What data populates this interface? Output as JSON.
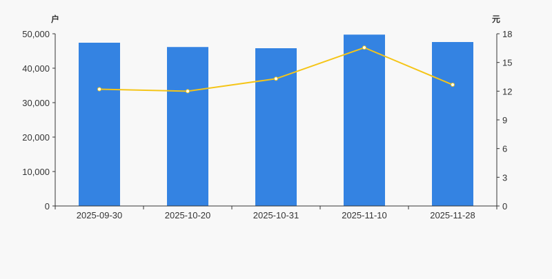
{
  "chart_data": {
    "type": "bar+line",
    "categories": [
      "2025-09-30",
      "2025-10-20",
      "2025-10-31",
      "2025-11-10",
      "2025-11-28"
    ],
    "series": [
      {
        "type": "bar",
        "axis": "left",
        "values": [
          47400,
          46150,
          45800,
          49750,
          47600
        ],
        "color": "#3483e2"
      },
      {
        "type": "line",
        "axis": "right",
        "values": [
          12.2,
          12.0,
          13.3,
          16.55,
          12.67
        ],
        "color": "#f5c518"
      }
    ],
    "left_axis": {
      "unit": "户",
      "ylim": [
        0,
        50000
      ],
      "ticks": [
        "0",
        "10,000",
        "20,000",
        "30,000",
        "40,000",
        "50,000"
      ]
    },
    "right_axis": {
      "unit": "元",
      "ylim": [
        0,
        18
      ],
      "ticks": [
        "0",
        "3",
        "6",
        "9",
        "12",
        "15",
        "18"
      ]
    },
    "grid": false,
    "legend": "none"
  }
}
